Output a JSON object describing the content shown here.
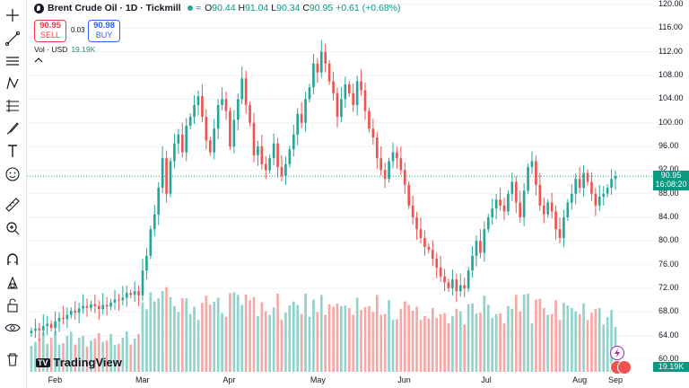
{
  "symbol": {
    "title": "Brent Crude Oil · 1D · Tickmill",
    "ohlc_open_label": "O",
    "ohlc_open": "90.44",
    "ohlc_high_label": "H",
    "ohlc_high": "91.04",
    "ohlc_low_label": "L",
    "ohlc_low": "90.34",
    "ohlc_close_label": "C",
    "ohlc_close": "90.95",
    "change": "+0.61 (+0.68%)"
  },
  "trade": {
    "sell_price": "90.95",
    "sell_label": "SELL",
    "spread": "0.03",
    "buy_price": "90.98",
    "buy_label": "BUY"
  },
  "volume_legend": {
    "label": "Vol · USD",
    "value": "19.19K"
  },
  "watermark": "TradingView",
  "price_axis": {
    "ticks": [
      "120.00",
      "116.00",
      "112.00",
      "108.00",
      "104.00",
      "100.00",
      "96.00",
      "92.00",
      "88.00",
      "84.00",
      "80.00",
      "76.00",
      "72.00",
      "68.00",
      "64.00",
      "60.00"
    ],
    "current_price": "90.95",
    "countdown": "16:08:20",
    "volume_tag": "19.19K"
  },
  "time_axis": {
    "labels": [
      "Feb",
      "Mar",
      "Apr",
      "May",
      "Jun",
      "Jul",
      "Aug",
      "Sep"
    ]
  },
  "colors": {
    "up": "#26a69a",
    "down": "#ef5350",
    "up_vol": "#8fd3cb",
    "down_vol": "#f5a8a6"
  },
  "chart_data": {
    "type": "candlestick",
    "y_range": [
      60,
      120
    ],
    "last_price": 90.95,
    "closes": [
      64.8,
      65.2,
      64.9,
      65.6,
      66.0,
      65.3,
      66.4,
      67.0,
      66.8,
      67.5,
      68.2,
      67.9,
      68.6,
      69.0,
      68.7,
      69.3,
      69.0,
      68.5,
      69.2,
      68.9,
      69.6,
      70.1,
      70.0,
      70.4,
      71.2,
      70.9,
      71.5,
      70.8,
      75.0,
      77.5,
      82.0,
      84.5,
      89.0,
      94.0,
      88.0,
      93.5,
      96.5,
      98.0,
      95.0,
      99.5,
      101.0,
      103.0,
      104.5,
      101.0,
      97.0,
      95.0,
      99.0,
      103.0,
      104.0,
      102.0,
      96.0,
      100.5,
      104.0,
      107.5,
      103.0,
      100.0,
      94.5,
      96.0,
      93.0,
      92.0,
      94.0,
      96.5,
      92.5,
      91.0,
      93.0,
      95.5,
      98.0,
      101.5,
      100.0,
      104.0,
      106.0,
      110.0,
      108.5,
      112.0,
      110.0,
      107.0,
      105.0,
      101.0,
      104.0,
      106.5,
      105.0,
      103.0,
      107.0,
      105.5,
      102.0,
      99.0,
      97.5,
      94.0,
      92.0,
      90.5,
      93.5,
      95.0,
      94.0,
      92.0,
      89.5,
      86.0,
      84.0,
      82.0,
      80.5,
      79.0,
      78.5,
      77.0,
      75.5,
      74.0,
      73.0,
      72.0,
      73.5,
      71.5,
      72.5,
      72.0,
      75.0,
      77.5,
      80.0,
      78.0,
      82.0,
      84.0,
      85.5,
      87.0,
      86.0,
      85.0,
      88.0,
      90.0,
      86.5,
      84.0,
      88.5,
      92.5,
      93.5,
      89.5,
      86.0,
      84.5,
      86.5,
      85.0,
      82.0,
      80.5,
      84.0,
      86.5,
      88.0,
      90.5,
      89.0,
      91.5,
      90.0,
      88.0,
      86.0,
      87.5,
      88.0,
      89.0,
      90.5,
      90.95
    ]
  }
}
